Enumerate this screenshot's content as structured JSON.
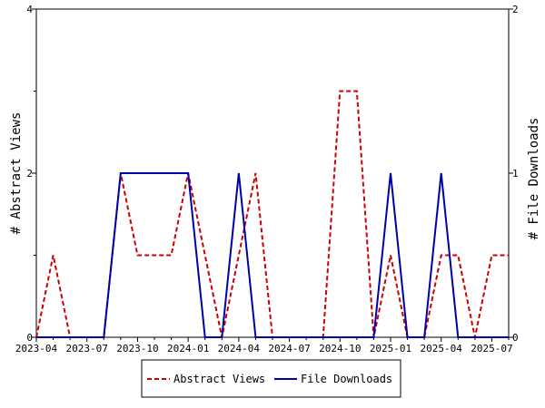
{
  "chart_data": {
    "type": "line",
    "x": [
      "2023-04",
      "2023-05",
      "2023-06",
      "2023-07",
      "2023-08",
      "2023-09",
      "2023-10",
      "2023-11",
      "2023-12",
      "2024-01",
      "2024-02",
      "2024-03",
      "2024-04",
      "2024-05",
      "2024-06",
      "2024-07",
      "2024-08",
      "2024-09",
      "2024-10",
      "2024-11",
      "2024-12",
      "2025-01",
      "2025-02",
      "2025-03",
      "2025-04",
      "2025-05",
      "2025-06",
      "2025-07",
      "2025-08"
    ],
    "x_tick_labels": [
      "2023-04",
      "2023-07",
      "2023-10",
      "2024-01",
      "2024-04",
      "2024-07",
      "2024-10",
      "2025-01",
      "2025-04",
      "2025-07"
    ],
    "series": [
      {
        "name": "Abstract Views",
        "axis": "left",
        "color": "#cc0000",
        "dash": "dashed",
        "values": [
          0,
          1,
          0,
          0,
          0,
          2,
          1,
          1,
          1,
          2,
          1,
          0,
          1,
          2,
          0,
          0,
          0,
          0,
          3,
          3,
          0,
          1,
          0,
          0,
          1,
          1,
          0,
          1,
          1
        ]
      },
      {
        "name": "File Downloads",
        "axis": "right",
        "color": "#0000aa",
        "dash": "solid",
        "values": [
          0,
          0,
          0,
          0,
          0,
          1,
          1,
          1,
          1,
          1,
          0,
          0,
          1,
          0,
          0,
          0,
          0,
          0,
          0,
          0,
          0,
          1,
          0,
          0,
          1,
          0,
          0,
          0,
          0
        ]
      }
    ],
    "y_left": {
      "label": "# Abstract Views",
      "ylim": [
        0,
        4
      ],
      "ticks": [
        "0",
        "2",
        "4"
      ]
    },
    "y_right": {
      "label": "# File Downloads",
      "ylim": [
        0,
        2
      ],
      "ticks": [
        "0",
        "1",
        "2"
      ]
    },
    "grid": false,
    "legend": {
      "placement": "bottom-center",
      "entries": [
        "Abstract Views",
        "File Downloads"
      ]
    }
  }
}
